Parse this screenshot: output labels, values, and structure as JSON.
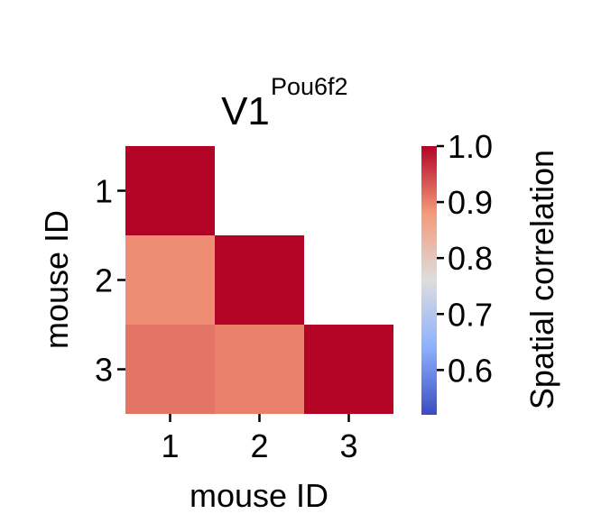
{
  "chart_data": {
    "type": "heatmap",
    "title": "V1",
    "title_superscript": "Pou6f2",
    "xlabel": "mouse ID",
    "ylabel": "mouse ID",
    "x_categories": [
      "1",
      "2",
      "3"
    ],
    "y_categories": [
      "1",
      "2",
      "3"
    ],
    "matrix": [
      [
        1.0,
        null,
        null
      ],
      [
        0.89,
        1.0,
        null
      ],
      [
        0.91,
        0.9,
        1.0
      ]
    ],
    "mask": "upper triangle (excluding diagonal)",
    "colorbar": {
      "label": "Spatial correlation",
      "colormap": "coolwarm",
      "range": [
        0.52,
        1.0
      ],
      "ticks": [
        0.6,
        0.7,
        0.8,
        0.9,
        1.0
      ],
      "tick_labels": [
        "0.6",
        "0.7",
        "0.8",
        "0.9",
        "1.0"
      ]
    },
    "grid": false
  }
}
